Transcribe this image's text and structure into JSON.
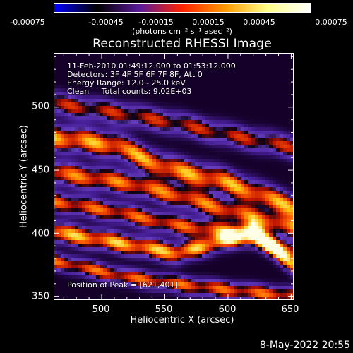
{
  "colorbar": {
    "min": -0.00075,
    "max": 0.00075,
    "tick_labels": [
      "-0.00075",
      "-0.00045",
      "-0.00015",
      "0.00015",
      "0.00045",
      "0.00075"
    ],
    "unit_label": "(photons cm⁻² s⁻¹ asec⁻²)",
    "colors": [
      "#0000ff",
      "#000000",
      "#5a1a9a",
      "#ff2200",
      "#ff9900",
      "#ffff88",
      "#ffffff"
    ]
  },
  "title": "Reconstructed RHESSI Image",
  "info": {
    "time_range": "11-Feb-2010 01:49:12.000 to 01:53:12.000",
    "detectors": "Detectors: 3F 4F 5F 6F 7F 8F, Att 0",
    "energy": "Energy Range: 12.0 - 25.0 keV",
    "clean": "Clean     Total counts: 9.02E+03",
    "peak": "Position of Peak = [621,401]"
  },
  "footer": "8-May-2022 20:55",
  "chart_data": {
    "type": "heatmap",
    "title": "Reconstructed RHESSI Image",
    "xlabel": "Heliocentric X (arcsec)",
    "ylabel": "Heliocentric Y (arcsec)",
    "xlim": [
      462,
      652
    ],
    "ylim": [
      347,
      543
    ],
    "xticks": [
      500,
      550,
      600,
      650
    ],
    "yticks": [
      350,
      400,
      450,
      500
    ],
    "peak": {
      "x": 621,
      "y": 401
    },
    "ridges": [
      {
        "x": [
          462,
          520,
          560,
          600,
          652
        ],
        "y": [
          503,
          494,
          487,
          478,
          468
        ],
        "level": 0.55,
        "width": 8
      },
      {
        "x": [
          462,
          510,
          550,
          600,
          652
        ],
        "y": [
          476,
          470,
          452,
          440,
          420
        ],
        "level": 0.85,
        "width": 9
      },
      {
        "x": [
          462,
          520,
          560,
          600,
          652
        ],
        "y": [
          448,
          440,
          430,
          418,
          404
        ],
        "level": 0.75,
        "width": 8
      },
      {
        "x": [
          462,
          510,
          560,
          610,
          652
        ],
        "y": [
          425,
          417,
          406,
          400,
          385
        ],
        "level": 0.7,
        "width": 7
      },
      {
        "x": [
          462,
          510,
          560,
          620,
          652
        ],
        "y": [
          401,
          393,
          384,
          401,
          375
        ],
        "level": 0.9,
        "width": 7
      },
      {
        "x": [
          462,
          520,
          580,
          630,
          652
        ],
        "y": [
          378,
          365,
          357,
          352,
          350
        ],
        "level": 0.7,
        "width": 6
      }
    ]
  }
}
